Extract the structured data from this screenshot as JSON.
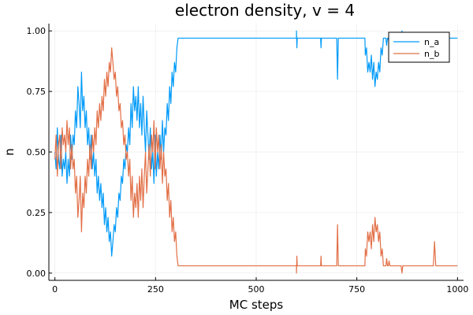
{
  "chart_data": {
    "type": "line",
    "title": "electron density, v = 4",
    "xlabel": "MC steps",
    "ylabel": "n",
    "xlim": [
      -15,
      1015
    ],
    "ylim": [
      -0.03,
      1.03
    ],
    "xticks": [
      0,
      250,
      500,
      750,
      1000
    ],
    "xtick_labels": [
      "0",
      "250",
      "500",
      "750",
      "1000"
    ],
    "yticks": [
      0,
      0.25,
      0.5,
      0.75,
      1.0
    ],
    "ytick_labels": [
      "0.00",
      "0.25",
      "0.50",
      "0.75",
      "1.00"
    ],
    "grid": true,
    "legend_position": "top-right",
    "series": [
      {
        "name": "n_a",
        "color": "#009af9",
        "points": [
          [
            0,
            0.5
          ],
          [
            3,
            0.43
          ],
          [
            6,
            0.6
          ],
          [
            9,
            0.47
          ],
          [
            12,
            0.43
          ],
          [
            15,
            0.57
          ],
          [
            18,
            0.4
          ],
          [
            21,
            0.47
          ],
          [
            24,
            0.43
          ],
          [
            27,
            0.5
          ],
          [
            30,
            0.37
          ],
          [
            33,
            0.47
          ],
          [
            36,
            0.4
          ],
          [
            39,
            0.57
          ],
          [
            42,
            0.47
          ],
          [
            45,
            0.57
          ],
          [
            48,
            0.53
          ],
          [
            51,
            0.67
          ],
          [
            54,
            0.6
          ],
          [
            57,
            0.77
          ],
          [
            60,
            0.7
          ],
          [
            63,
            0.6
          ],
          [
            66,
            0.83
          ],
          [
            69,
            0.67
          ],
          [
            72,
            0.73
          ],
          [
            75,
            0.6
          ],
          [
            78,
            0.67
          ],
          [
            81,
            0.53
          ],
          [
            84,
            0.6
          ],
          [
            87,
            0.47
          ],
          [
            90,
            0.57
          ],
          [
            93,
            0.43
          ],
          [
            96,
            0.5
          ],
          [
            99,
            0.4
          ],
          [
            102,
            0.47
          ],
          [
            105,
            0.33
          ],
          [
            108,
            0.4
          ],
          [
            111,
            0.3
          ],
          [
            114,
            0.37
          ],
          [
            117,
            0.27
          ],
          [
            120,
            0.33
          ],
          [
            123,
            0.2
          ],
          [
            126,
            0.27
          ],
          [
            129,
            0.17
          ],
          [
            132,
            0.23
          ],
          [
            135,
            0.13
          ],
          [
            138,
            0.17
          ],
          [
            141,
            0.07
          ],
          [
            144,
            0.13
          ],
          [
            147,
            0.2
          ],
          [
            150,
            0.17
          ],
          [
            153,
            0.27
          ],
          [
            156,
            0.23
          ],
          [
            159,
            0.33
          ],
          [
            162,
            0.3
          ],
          [
            165,
            0.4
          ],
          [
            168,
            0.37
          ],
          [
            171,
            0.47
          ],
          [
            174,
            0.43
          ],
          [
            177,
            0.53
          ],
          [
            180,
            0.5
          ],
          [
            183,
            0.6
          ],
          [
            186,
            0.53
          ],
          [
            189,
            0.7
          ],
          [
            192,
            0.6
          ],
          [
            195,
            0.77
          ],
          [
            198,
            0.67
          ],
          [
            201,
            0.73
          ],
          [
            204,
            0.63
          ],
          [
            207,
            0.77
          ],
          [
            210,
            0.6
          ],
          [
            213,
            0.7
          ],
          [
            216,
            0.57
          ],
          [
            219,
            0.73
          ],
          [
            222,
            0.6
          ],
          [
            225,
            0.5
          ],
          [
            228,
            0.67
          ],
          [
            231,
            0.57
          ],
          [
            234,
            0.47
          ],
          [
            237,
            0.6
          ],
          [
            240,
            0.43
          ],
          [
            243,
            0.5
          ],
          [
            246,
            0.37
          ],
          [
            249,
            0.57
          ],
          [
            252,
            0.4
          ],
          [
            255,
            0.5
          ],
          [
            258,
            0.43
          ],
          [
            261,
            0.57
          ],
          [
            264,
            0.47
          ],
          [
            267,
            0.63
          ],
          [
            270,
            0.5
          ],
          [
            273,
            0.6
          ],
          [
            276,
            0.57
          ],
          [
            279,
            0.7
          ],
          [
            282,
            0.63
          ],
          [
            285,
            0.77
          ],
          [
            288,
            0.7
          ],
          [
            291,
            0.83
          ],
          [
            294,
            0.77
          ],
          [
            297,
            0.87
          ],
          [
            300,
            0.83
          ],
          [
            303,
            0.93
          ],
          [
            306,
            0.97
          ],
          [
            310,
            0.97
          ],
          [
            600,
            0.97
          ],
          [
            600,
            1.0
          ],
          [
            601,
            0.93
          ],
          [
            602,
            0.97
          ],
          [
            660,
            0.97
          ],
          [
            661,
            0.93
          ],
          [
            662,
            0.97
          ],
          [
            700,
            0.97
          ],
          [
            702,
            0.8
          ],
          [
            704,
            0.97
          ],
          [
            770,
            0.97
          ],
          [
            771,
            0.9
          ],
          [
            774,
            0.93
          ],
          [
            777,
            0.83
          ],
          [
            780,
            0.87
          ],
          [
            783,
            0.83
          ],
          [
            786,
            0.9
          ],
          [
            789,
            0.8
          ],
          [
            792,
            0.87
          ],
          [
            795,
            0.77
          ],
          [
            798,
            0.83
          ],
          [
            801,
            0.8
          ],
          [
            804,
            0.87
          ],
          [
            807,
            0.83
          ],
          [
            810,
            0.93
          ],
          [
            813,
            0.9
          ],
          [
            816,
            0.97
          ],
          [
            820,
            0.97
          ],
          [
            822,
            0.97
          ],
          [
            824,
            0.94
          ],
          [
            826,
            0.97
          ],
          [
            828,
            0.97
          ],
          [
            830,
            0.95
          ],
          [
            832,
            0.97
          ],
          [
            860,
            0.97
          ],
          [
            862,
            1.0
          ],
          [
            864,
            0.97
          ],
          [
            1000,
            0.97
          ]
        ]
      },
      {
        "name": "n_b",
        "color": "#e26f46",
        "points": [
          [
            0,
            0.47
          ],
          [
            3,
            0.57
          ],
          [
            6,
            0.4
          ],
          [
            9,
            0.53
          ],
          [
            12,
            0.57
          ],
          [
            15,
            0.43
          ],
          [
            18,
            0.6
          ],
          [
            21,
            0.53
          ],
          [
            24,
            0.57
          ],
          [
            27,
            0.5
          ],
          [
            30,
            0.63
          ],
          [
            33,
            0.53
          ],
          [
            36,
            0.6
          ],
          [
            39,
            0.43
          ],
          [
            42,
            0.53
          ],
          [
            45,
            0.43
          ],
          [
            48,
            0.47
          ],
          [
            51,
            0.33
          ],
          [
            54,
            0.4
          ],
          [
            57,
            0.23
          ],
          [
            60,
            0.3
          ],
          [
            63,
            0.4
          ],
          [
            66,
            0.17
          ],
          [
            69,
            0.33
          ],
          [
            72,
            0.27
          ],
          [
            75,
            0.4
          ],
          [
            78,
            0.33
          ],
          [
            81,
            0.47
          ],
          [
            84,
            0.4
          ],
          [
            87,
            0.53
          ],
          [
            90,
            0.43
          ],
          [
            93,
            0.57
          ],
          [
            96,
            0.5
          ],
          [
            99,
            0.6
          ],
          [
            102,
            0.53
          ],
          [
            105,
            0.67
          ],
          [
            108,
            0.6
          ],
          [
            111,
            0.7
          ],
          [
            114,
            0.63
          ],
          [
            117,
            0.73
          ],
          [
            120,
            0.67
          ],
          [
            123,
            0.8
          ],
          [
            126,
            0.73
          ],
          [
            129,
            0.83
          ],
          [
            132,
            0.77
          ],
          [
            135,
            0.87
          ],
          [
            138,
            0.83
          ],
          [
            141,
            0.93
          ],
          [
            144,
            0.87
          ],
          [
            147,
            0.8
          ],
          [
            150,
            0.83
          ],
          [
            153,
            0.73
          ],
          [
            156,
            0.77
          ],
          [
            159,
            0.67
          ],
          [
            162,
            0.7
          ],
          [
            165,
            0.6
          ],
          [
            168,
            0.63
          ],
          [
            171,
            0.53
          ],
          [
            174,
            0.57
          ],
          [
            177,
            0.47
          ],
          [
            180,
            0.5
          ],
          [
            183,
            0.4
          ],
          [
            186,
            0.47
          ],
          [
            189,
            0.3
          ],
          [
            192,
            0.4
          ],
          [
            195,
            0.23
          ],
          [
            198,
            0.33
          ],
          [
            201,
            0.27
          ],
          [
            204,
            0.37
          ],
          [
            207,
            0.23
          ],
          [
            210,
            0.4
          ],
          [
            213,
            0.3
          ],
          [
            216,
            0.43
          ],
          [
            219,
            0.27
          ],
          [
            222,
            0.4
          ],
          [
            225,
            0.5
          ],
          [
            228,
            0.33
          ],
          [
            231,
            0.43
          ],
          [
            234,
            0.53
          ],
          [
            237,
            0.4
          ],
          [
            240,
            0.57
          ],
          [
            243,
            0.5
          ],
          [
            246,
            0.63
          ],
          [
            249,
            0.43
          ],
          [
            252,
            0.6
          ],
          [
            255,
            0.5
          ],
          [
            258,
            0.57
          ],
          [
            261,
            0.43
          ],
          [
            264,
            0.53
          ],
          [
            267,
            0.37
          ],
          [
            270,
            0.5
          ],
          [
            273,
            0.4
          ],
          [
            276,
            0.43
          ],
          [
            279,
            0.3
          ],
          [
            282,
            0.37
          ],
          [
            285,
            0.23
          ],
          [
            288,
            0.3
          ],
          [
            291,
            0.17
          ],
          [
            294,
            0.23
          ],
          [
            297,
            0.13
          ],
          [
            300,
            0.17
          ],
          [
            303,
            0.07
          ],
          [
            306,
            0.03
          ],
          [
            310,
            0.03
          ],
          [
            600,
            0.03
          ],
          [
            600,
            0.0
          ],
          [
            601,
            0.07
          ],
          [
            602,
            0.03
          ],
          [
            660,
            0.03
          ],
          [
            661,
            0.07
          ],
          [
            662,
            0.03
          ],
          [
            700,
            0.03
          ],
          [
            702,
            0.2
          ],
          [
            704,
            0.03
          ],
          [
            770,
            0.03
          ],
          [
            771,
            0.1
          ],
          [
            774,
            0.07
          ],
          [
            777,
            0.17
          ],
          [
            780,
            0.13
          ],
          [
            783,
            0.17
          ],
          [
            786,
            0.1
          ],
          [
            789,
            0.2
          ],
          [
            792,
            0.13
          ],
          [
            795,
            0.23
          ],
          [
            798,
            0.17
          ],
          [
            801,
            0.2
          ],
          [
            804,
            0.13
          ],
          [
            807,
            0.17
          ],
          [
            810,
            0.07
          ],
          [
            813,
            0.1
          ],
          [
            816,
            0.03
          ],
          [
            820,
            0.03
          ],
          [
            822,
            0.03
          ],
          [
            824,
            0.06
          ],
          [
            826,
            0.03
          ],
          [
            828,
            0.03
          ],
          [
            830,
            0.05
          ],
          [
            832,
            0.03
          ],
          [
            860,
            0.03
          ],
          [
            862,
            0.0
          ],
          [
            864,
            0.03
          ],
          [
            880,
            0.03
          ],
          [
            940,
            0.03
          ],
          [
            943,
            0.13
          ],
          [
            946,
            0.03
          ],
          [
            1000,
            0.03
          ]
        ]
      }
    ]
  }
}
